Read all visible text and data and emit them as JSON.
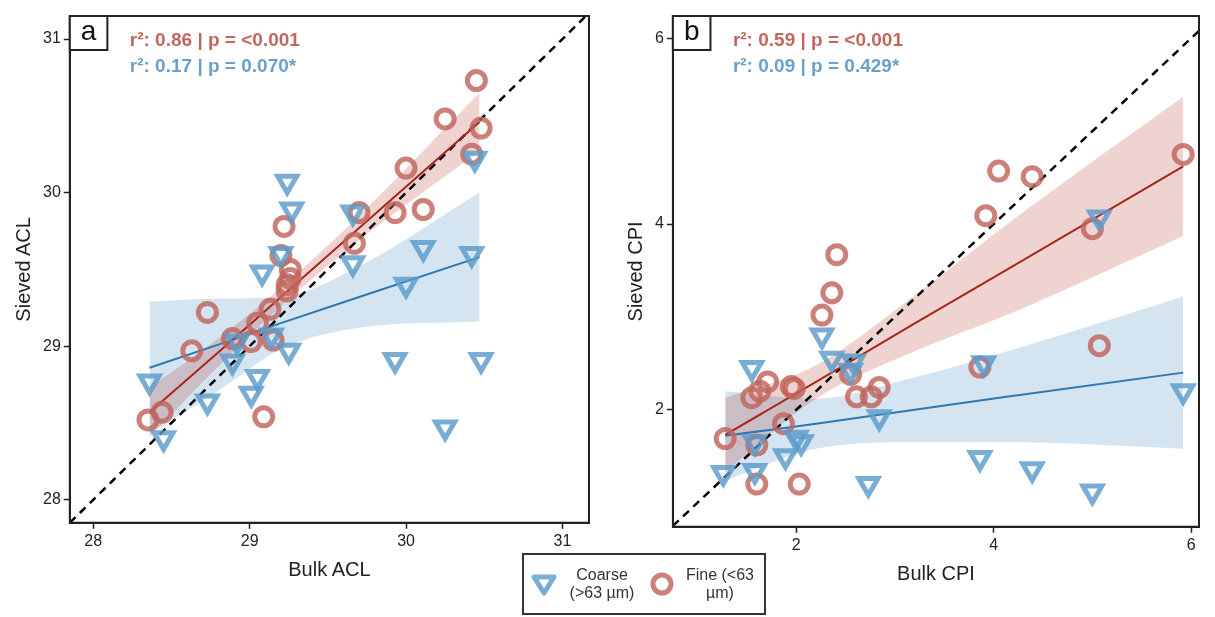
{
  "chart_data": [
    {
      "type": "scatter",
      "title": "a",
      "xlabel": "Bulk ACL",
      "ylabel": "Sieved ACL",
      "annotations": [
        "r²: 0.86 | p = <0.001",
        "r²: 0.17 | p = 0.070*"
      ],
      "xlim": [
        27.85,
        31.17
      ],
      "ylim": [
        27.85,
        31.15
      ],
      "xticks": [
        28,
        29,
        30,
        31
      ],
      "yticks": [
        28,
        29,
        30,
        31
      ],
      "grid": false,
      "legend": "bottom",
      "series": [
        {
          "type": "line",
          "color": "#a8251a",
          "marker": "none",
          "x": [
            28.36,
            28.8,
            29.2,
            29.7,
            30.47
          ],
          "values": [
            28.57,
            28.96,
            29.32,
            29.77,
            30.46
          ],
          "lower": [
            28.41,
            28.87,
            29.26,
            29.69,
            30.27
          ],
          "upper": [
            28.73,
            29.05,
            29.38,
            29.85,
            30.65
          ]
        },
        {
          "type": "line",
          "color": "#2a78b5",
          "marker": "none",
          "x": [
            28.36,
            28.8,
            29.2,
            29.7,
            30.47
          ],
          "values": [
            28.86,
            29.01,
            29.15,
            29.32,
            29.58
          ],
          "lower": [
            28.43,
            28.71,
            28.98,
            29.12,
            29.16
          ],
          "upper": [
            29.29,
            29.31,
            29.32,
            29.52,
            30.0
          ]
        },
        {
          "type": "line",
          "color": "#000000",
          "marker": "none",
          "line_style": "dashed",
          "x": [
            27.85,
            31.15
          ],
          "values": [
            27.85,
            31.15
          ]
        },
        {
          "name": "Coarse (>63 µm)",
          "color": "#5b9bc9",
          "marker": "triangle",
          "x": [
            29.24,
            29.27,
            30.44,
            29.2,
            29.08,
            29.66,
            29.66,
            30.11,
            30.42,
            30.0,
            28.36,
            28.45,
            28.73,
            28.89,
            29.05,
            29.01,
            29.25,
            29.14,
            28.92,
            29.93,
            30.48,
            30.25
          ],
          "values": [
            30.07,
            29.89,
            30.22,
            29.6,
            29.48,
            29.87,
            29.54,
            29.64,
            29.6,
            29.4,
            28.77,
            28.4,
            28.64,
            28.9,
            28.8,
            28.69,
            28.97,
            29.07,
            29.03,
            28.91,
            28.91,
            28.47
          ]
        },
        {
          "name": "Fine (<63 µm)",
          "color": "#c0645b",
          "marker": "circle",
          "x": [
            30.45,
            30.25,
            30.48,
            30.42,
            30.0,
            29.7,
            29.93,
            30.11,
            29.67,
            29.22,
            29.2,
            29.26,
            29.24,
            29.26,
            29.24,
            29.13,
            29.05,
            28.89,
            29.01,
            29.15,
            28.73,
            28.63,
            28.35,
            28.44,
            29.09
          ],
          "values": [
            30.73,
            30.48,
            30.42,
            30.25,
            30.16,
            29.87,
            29.87,
            29.89,
            29.67,
            29.78,
            29.59,
            29.5,
            29.4,
            29.44,
            29.36,
            29.24,
            29.15,
            29.05,
            29.03,
            29.04,
            29.22,
            28.97,
            28.52,
            28.57,
            28.54
          ]
        }
      ]
    },
    {
      "type": "scatter",
      "title": "b",
      "xlabel": "Bulk CPI",
      "ylabel": "Sieved CPI",
      "annotations": [
        "r²: 0.59 | p = <0.001",
        "r²: 0.09 | p = 0.429*"
      ],
      "xlim": [
        0.75,
        6.08
      ],
      "ylim": [
        0.74,
        6.24
      ],
      "xticks": [
        2,
        4,
        6
      ],
      "yticks": [
        2,
        4,
        6
      ],
      "grid": false,
      "series": [
        {
          "type": "line",
          "color": "#a8251a",
          "marker": "none",
          "x": [
            1.28,
            2.2,
            3.2,
            4.2,
            5.92
          ],
          "values": [
            1.73,
            2.3,
            2.93,
            3.55,
            4.62
          ],
          "lower": [
            1.33,
            2.12,
            2.63,
            3.05,
            3.87
          ],
          "upper": [
            2.13,
            2.48,
            3.23,
            4.05,
            5.37
          ]
        },
        {
          "type": "line",
          "color": "#2a78b5",
          "marker": "none",
          "x": [
            1.28,
            2.2,
            3.2,
            4.2,
            5.92
          ],
          "values": [
            1.72,
            1.85,
            2.0,
            2.15,
            2.4
          ],
          "lower": [
            1.24,
            1.58,
            1.65,
            1.65,
            1.58
          ],
          "upper": [
            2.2,
            2.12,
            2.35,
            2.65,
            3.22
          ]
        },
        {
          "type": "line",
          "color": "#000000",
          "marker": "none",
          "line_style": "dashed",
          "x": [
            0.75,
            6.08
          ],
          "values": [
            0.75,
            6.08
          ]
        },
        {
          "color": "#5b9bc9",
          "marker": "triangle",
          "x": [
            5.07,
            2.26,
            1.55,
            2.36,
            2.58,
            2.55,
            3.9,
            5.92,
            2.84,
            2.05,
            1.58,
            1.58,
            1.26,
            1.89,
            3.86,
            4.39,
            5.0,
            2.73,
            2.0
          ],
          "values": [
            4.07,
            2.8,
            2.45,
            2.55,
            2.52,
            2.42,
            2.5,
            2.2,
            1.92,
            1.65,
            1.65,
            1.34,
            1.32,
            1.5,
            1.48,
            1.36,
            1.12,
            1.2,
            1.7
          ]
        },
        {
          "color": "#c0645b",
          "marker": "circle",
          "x": [
            4.05,
            4.39,
            3.92,
            5.92,
            5.0,
            2.41,
            2.36,
            2.26,
            1.71,
            1.55,
            1.63,
            1.95,
            1.98,
            2.55,
            2.84,
            2.61,
            2.76,
            1.87,
            1.28,
            1.6,
            1.6,
            2.03,
            3.86,
            5.07
          ],
          "values": [
            4.57,
            4.51,
            4.09,
            4.75,
            3.95,
            3.67,
            3.26,
            3.02,
            2.3,
            2.13,
            2.2,
            2.25,
            2.23,
            2.38,
            2.24,
            2.14,
            2.14,
            1.85,
            1.69,
            1.62,
            1.2,
            1.2,
            2.46,
            2.69
          ]
        }
      ]
    }
  ]
}
